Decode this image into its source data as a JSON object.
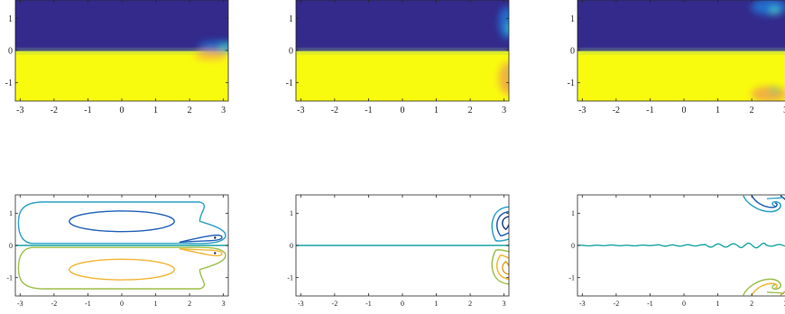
{
  "chart_data": [
    {
      "type": "heatmap",
      "row": "top",
      "xlim": [
        -3.1416,
        3.1416
      ],
      "ylim": [
        -1.5708,
        1.5708
      ],
      "xticks": [
        -3,
        -2,
        -1,
        0,
        1,
        2,
        3
      ],
      "xtick_labels": [
        "-3",
        "-2",
        "-1",
        "0",
        "1",
        "2",
        "3"
      ],
      "yticks": [
        1,
        0,
        -1
      ],
      "ytick_labels": [
        "1",
        "0",
        "-1"
      ],
      "interface_y": -0.02,
      "vortex_centers": [
        [
          3.0,
          0.05
        ]
      ],
      "colors": {
        "low": "#332a8c",
        "high": "#f9fb0e",
        "mid": "#24a6c8"
      }
    },
    {
      "type": "heatmap",
      "row": "top",
      "xlim": [
        -3.1416,
        3.1416
      ],
      "ylim": [
        -1.5708,
        1.5708
      ],
      "xticks": [
        -3,
        -2,
        -1,
        0,
        1,
        2,
        3
      ],
      "xtick_labels": [
        "-3",
        "-2",
        "-1",
        "0",
        "1",
        "2",
        "3"
      ],
      "yticks": [
        1,
        0,
        -1
      ],
      "ytick_labels": [
        "1",
        "0",
        "-1"
      ],
      "interface_y": -0.02,
      "vortex_centers": [
        [
          3.0,
          0.75
        ],
        [
          3.0,
          -0.75
        ]
      ],
      "colors": {
        "low": "#332a8c",
        "high": "#f9fb0e",
        "mid": "#24a6c8"
      }
    },
    {
      "type": "heatmap",
      "row": "top",
      "xlim": [
        -3.1416,
        3.1416
      ],
      "ylim": [
        -1.5708,
        1.5708
      ],
      "xticks": [
        -3,
        -2,
        -1,
        0,
        1,
        2,
        3
      ],
      "xtick_labels": [
        "-3",
        "-2",
        "-1",
        "0",
        "1",
        "2",
        "3"
      ],
      "yticks": [
        1,
        0,
        -1
      ],
      "ytick_labels": [
        "1",
        "0",
        "-1"
      ],
      "interface_y": -0.02,
      "vortex_centers": [
        [
          2.3,
          1.3
        ],
        [
          2.3,
          -1.3
        ]
      ],
      "colors": {
        "low": "#332a8c",
        "high": "#f9fb0e",
        "mid": "#24a6c8"
      }
    },
    {
      "type": "contour",
      "row": "bottom",
      "xlim": [
        -3.1416,
        3.1416
      ],
      "ylim": [
        -1.5708,
        1.5708
      ],
      "xticks": [
        -3,
        -2,
        -1,
        0,
        1,
        2,
        3
      ],
      "xtick_labels": [
        "-3",
        "-2",
        "-1",
        "0",
        "1",
        "2",
        "3"
      ],
      "yticks": [
        1,
        0,
        -1
      ],
      "ytick_labels": [
        "1",
        "0",
        "-1"
      ],
      "colors": {
        "outer_top": "#2aa0c6",
        "inner_top": "#1f5fb8",
        "outer_bottom": "#9cbf4a",
        "inner_bottom": "#f2b531",
        "zero": "#1aa6a6"
      }
    },
    {
      "type": "contour",
      "row": "bottom",
      "xlim": [
        -3.1416,
        3.1416
      ],
      "ylim": [
        -1.5708,
        1.5708
      ],
      "xticks": [
        -3,
        -2,
        -1,
        0,
        1,
        2,
        3
      ],
      "xtick_labels": [
        "-3",
        "-2",
        "-1",
        "0",
        "1",
        "2",
        "3"
      ],
      "yticks": [
        1,
        0,
        -1
      ],
      "ytick_labels": [
        "1",
        "0",
        "-1"
      ],
      "colors": {
        "outer_top": "#2aa0c6",
        "inner_top": "#1f5fb8",
        "outer_bottom": "#9cbf4a",
        "inner_bottom": "#f2b531",
        "zero": "#1aa6a6"
      }
    },
    {
      "type": "contour",
      "row": "bottom",
      "xlim": [
        -3.1416,
        3.1416
      ],
      "ylim": [
        -1.5708,
        1.5708
      ],
      "xticks": [
        -3,
        -2,
        -1,
        0,
        1,
        2,
        3
      ],
      "xtick_labels": [
        "-3",
        "-2",
        "-1",
        "0",
        "1",
        "2",
        "3"
      ],
      "yticks": [
        1,
        0,
        -1
      ],
      "ytick_labels": [
        "1",
        "0",
        "-1"
      ],
      "colors": {
        "outer_top": "#2aa0c6",
        "inner_top": "#1f5fb8",
        "outer_bottom": "#9cbf4a",
        "inner_bottom": "#f2b531",
        "zero": "#1aa6a6"
      }
    }
  ]
}
